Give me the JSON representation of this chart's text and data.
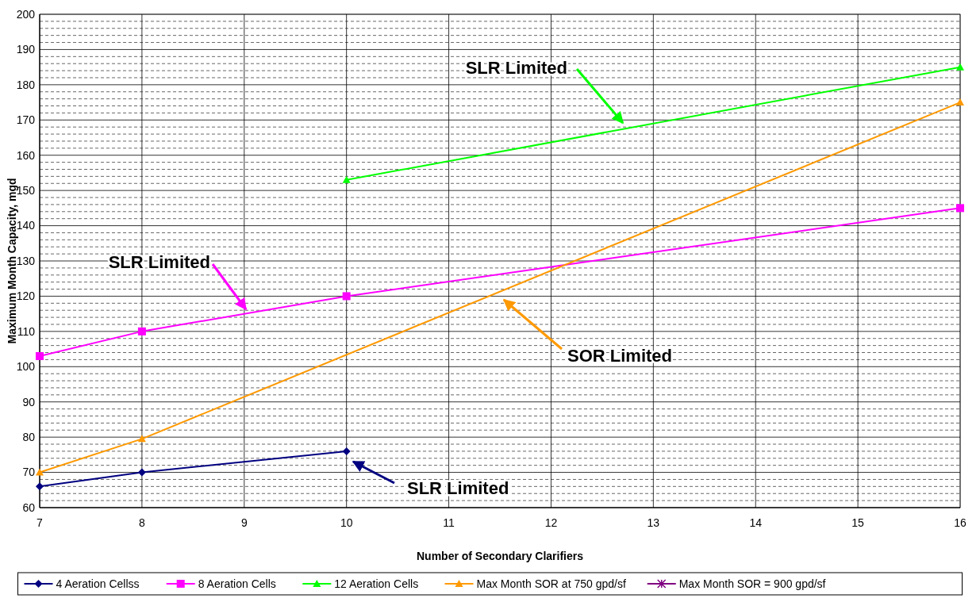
{
  "chart_data": {
    "type": "line",
    "xlabel": "Number of Secondary Clarifiers",
    "ylabel": "Maximum Month Capacity, mgd",
    "xlim": [
      7,
      16
    ],
    "xticks": [
      7,
      8,
      9,
      10,
      11,
      12,
      13,
      14,
      15,
      16
    ],
    "ylim": [
      60,
      200
    ],
    "yticks": [
      60,
      70,
      80,
      90,
      100,
      110,
      120,
      130,
      140,
      150,
      160,
      170,
      180,
      190,
      200
    ],
    "grid": true,
    "legend": "bottom",
    "series": [
      {
        "name": "4 Aeration Cellss",
        "color": "#000080",
        "marker": "diamond",
        "x": [
          7,
          8,
          10
        ],
        "values": [
          66,
          70,
          76
        ]
      },
      {
        "name": "8 Aeration Cells",
        "color": "#ff00ff",
        "marker": "square",
        "x": [
          7,
          8,
          10,
          16
        ],
        "values": [
          103,
          110,
          120,
          145
        ]
      },
      {
        "name": "12 Aeration Cells",
        "color": "#00ff00",
        "marker": "triangle",
        "x": [
          10,
          16
        ],
        "values": [
          153,
          185
        ]
      },
      {
        "name": "Max Month SOR at 750 gpd/sf",
        "color": "#ff9900",
        "marker": "triangle",
        "x": [
          7,
          8,
          16
        ],
        "values": [
          70,
          79.5,
          175
        ]
      },
      {
        "name": "Max Month SOR = 900 gpd/sf",
        "color": "#800080",
        "marker": "star"
      }
    ],
    "annotations": [
      "SLR Limited",
      "SLR Limited",
      "SOR Limited",
      "SLR Limited"
    ]
  }
}
